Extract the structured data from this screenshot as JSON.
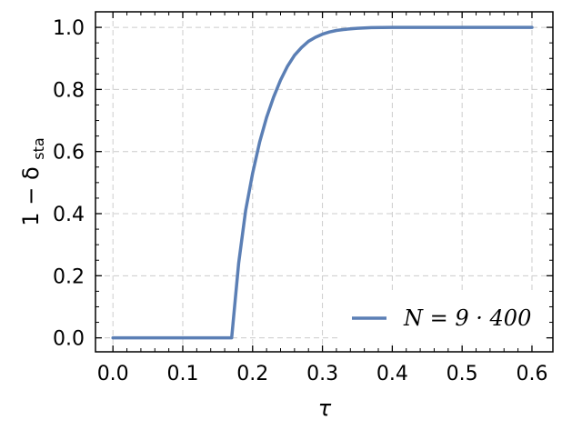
{
  "chart_data": {
    "type": "line",
    "xlabel": "τ",
    "ylabel_main": "1 − δ",
    "ylabel_sub": "sta",
    "xlim": [
      -0.025,
      0.63
    ],
    "ylim": [
      -0.045,
      1.05
    ],
    "x_ticks": [
      0.0,
      0.1,
      0.2,
      0.3,
      0.4,
      0.5,
      0.6
    ],
    "x_tick_labels": [
      "0.0",
      "0.1",
      "0.2",
      "0.3",
      "0.4",
      "0.5",
      "0.6"
    ],
    "y_ticks": [
      0.0,
      0.2,
      0.4,
      0.6,
      0.8,
      1.0
    ],
    "y_tick_labels": [
      "0.0",
      "0.2",
      "0.4",
      "0.6",
      "0.8",
      "1.0"
    ],
    "grid": true,
    "legend_placement": "bottom-right",
    "series": [
      {
        "name": "N = 9 · 400",
        "color": "#5b7fb5",
        "x": [
          0.0,
          0.05,
          0.1,
          0.15,
          0.17,
          0.175,
          0.18,
          0.19,
          0.2,
          0.21,
          0.22,
          0.23,
          0.24,
          0.25,
          0.26,
          0.27,
          0.28,
          0.29,
          0.3,
          0.31,
          0.32,
          0.33,
          0.34,
          0.35,
          0.37,
          0.4,
          0.45,
          0.5,
          0.55,
          0.6
        ],
        "y": [
          0.0,
          0.0,
          0.0,
          0.0,
          0.0,
          0.12,
          0.24,
          0.41,
          0.53,
          0.63,
          0.71,
          0.775,
          0.83,
          0.875,
          0.91,
          0.935,
          0.955,
          0.968,
          0.978,
          0.985,
          0.99,
          0.993,
          0.995,
          0.997,
          0.999,
          1.0,
          1.0,
          1.0,
          1.0,
          1.0
        ]
      }
    ]
  }
}
